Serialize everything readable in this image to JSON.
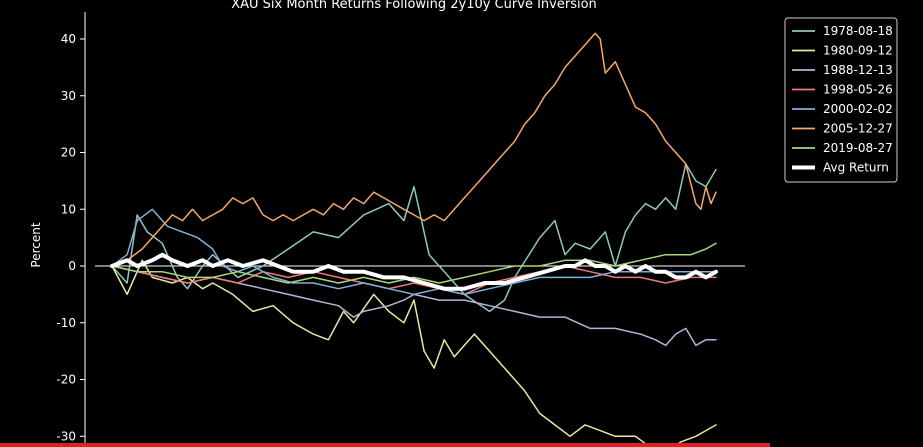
{
  "chart_data": {
    "type": "line",
    "title": "XAU Six Month Returns Following 2y10y Curve Inversion",
    "xlabel": "",
    "ylabel": "Percent",
    "ylim": [
      -31,
      43
    ],
    "yticks": [
      -30,
      -20,
      -10,
      0,
      10,
      20,
      30,
      40
    ],
    "xlim": [
      0,
      122
    ],
    "grid": false,
    "zero_line": true,
    "legend_position": "top-right",
    "series": [
      {
        "name": "1978-08-18",
        "color": "#8ec8c0",
        "points": [
          [
            0,
            0
          ],
          [
            3,
            -3
          ],
          [
            5,
            9
          ],
          [
            7,
            6
          ],
          [
            10,
            4
          ],
          [
            13,
            -2
          ],
          [
            15,
            -4
          ],
          [
            18,
            0
          ],
          [
            20,
            2
          ],
          [
            25,
            -2
          ],
          [
            30,
            0
          ],
          [
            35,
            3
          ],
          [
            40,
            6
          ],
          [
            45,
            5
          ],
          [
            50,
            9
          ],
          [
            55,
            11
          ],
          [
            58,
            8
          ],
          [
            60,
            14
          ],
          [
            63,
            2
          ],
          [
            65,
            0
          ],
          [
            68,
            -3
          ],
          [
            70,
            -5
          ],
          [
            75,
            -8
          ],
          [
            78,
            -6
          ],
          [
            80,
            -2
          ],
          [
            85,
            5
          ],
          [
            88,
            8
          ],
          [
            90,
            2
          ],
          [
            92,
            4
          ],
          [
            95,
            3
          ],
          [
            98,
            6
          ],
          [
            100,
            0
          ],
          [
            102,
            6
          ],
          [
            104,
            9
          ],
          [
            106,
            11
          ],
          [
            108,
            10
          ],
          [
            110,
            12
          ],
          [
            112,
            10
          ],
          [
            114,
            18
          ],
          [
            116,
            15
          ],
          [
            118,
            14
          ],
          [
            120,
            17
          ]
        ]
      },
      {
        "name": "1980-09-12",
        "color": "#e8e8a0",
        "points": [
          [
            0,
            0
          ],
          [
            3,
            -5
          ],
          [
            6,
            1
          ],
          [
            8,
            -2
          ],
          [
            12,
            -3
          ],
          [
            15,
            -2
          ],
          [
            18,
            -4
          ],
          [
            20,
            -3
          ],
          [
            24,
            -5
          ],
          [
            28,
            -8
          ],
          [
            32,
            -7
          ],
          [
            36,
            -10
          ],
          [
            40,
            -12
          ],
          [
            43,
            -13
          ],
          [
            46,
            -8
          ],
          [
            48,
            -10
          ],
          [
            52,
            -5
          ],
          [
            55,
            -8
          ],
          [
            58,
            -10
          ],
          [
            60,
            -6
          ],
          [
            62,
            -15
          ],
          [
            64,
            -18
          ],
          [
            66,
            -13
          ],
          [
            68,
            -16
          ],
          [
            70,
            -14
          ],
          [
            72,
            -12
          ],
          [
            75,
            -15
          ],
          [
            78,
            -18
          ],
          [
            80,
            -20
          ],
          [
            82,
            -22
          ],
          [
            85,
            -26
          ],
          [
            88,
            -28
          ],
          [
            91,
            -30
          ],
          [
            94,
            -28
          ],
          [
            97,
            -29
          ],
          [
            100,
            -30
          ],
          [
            104,
            -30
          ],
          [
            107,
            -32
          ],
          [
            110,
            -33
          ],
          [
            113,
            -31
          ],
          [
            116,
            -30
          ],
          [
            118,
            -29
          ],
          [
            120,
            -28
          ]
        ]
      },
      {
        "name": "1988-12-13",
        "color": "#b8b4d8",
        "points": [
          [
            0,
            0
          ],
          [
            5,
            -1
          ],
          [
            10,
            -2
          ],
          [
            15,
            -3
          ],
          [
            20,
            -2
          ],
          [
            25,
            -3
          ],
          [
            30,
            -4
          ],
          [
            35,
            -5
          ],
          [
            40,
            -6
          ],
          [
            45,
            -7
          ],
          [
            48,
            -9
          ],
          [
            50,
            -8
          ],
          [
            55,
            -7
          ],
          [
            58,
            -6
          ],
          [
            60,
            -5
          ],
          [
            65,
            -6
          ],
          [
            70,
            -6
          ],
          [
            75,
            -7
          ],
          [
            80,
            -8
          ],
          [
            85,
            -9
          ],
          [
            90,
            -9
          ],
          [
            95,
            -11
          ],
          [
            100,
            -11
          ],
          [
            105,
            -12
          ],
          [
            108,
            -13
          ],
          [
            110,
            -14
          ],
          [
            112,
            -12
          ],
          [
            114,
            -11
          ],
          [
            116,
            -14
          ],
          [
            118,
            -13
          ],
          [
            120,
            -13
          ]
        ]
      },
      {
        "name": "1998-05-26",
        "color": "#f07878",
        "points": [
          [
            0,
            0
          ],
          [
            5,
            -1
          ],
          [
            10,
            -2
          ],
          [
            15,
            -3
          ],
          [
            20,
            -2
          ],
          [
            25,
            -3
          ],
          [
            30,
            -1
          ],
          [
            35,
            -2
          ],
          [
            40,
            -1
          ],
          [
            45,
            -2
          ],
          [
            50,
            -3
          ],
          [
            55,
            -4
          ],
          [
            60,
            -3
          ],
          [
            65,
            -4
          ],
          [
            70,
            -5
          ],
          [
            75,
            -3
          ],
          [
            80,
            -2
          ],
          [
            85,
            -1
          ],
          [
            90,
            0
          ],
          [
            95,
            -1
          ],
          [
            100,
            -2
          ],
          [
            105,
            -2
          ],
          [
            110,
            -3
          ],
          [
            115,
            -2
          ],
          [
            120,
            -2
          ]
        ]
      },
      {
        "name": "2000-02-02",
        "color": "#80b0d8",
        "points": [
          [
            0,
            0
          ],
          [
            3,
            2
          ],
          [
            5,
            8
          ],
          [
            8,
            10
          ],
          [
            11,
            7
          ],
          [
            14,
            6
          ],
          [
            17,
            5
          ],
          [
            20,
            3
          ],
          [
            22,
            0
          ],
          [
            25,
            -1
          ],
          [
            28,
            0
          ],
          [
            32,
            -2
          ],
          [
            36,
            -3
          ],
          [
            40,
            -3
          ],
          [
            45,
            -4
          ],
          [
            50,
            -3
          ],
          [
            55,
            -4
          ],
          [
            60,
            -5
          ],
          [
            65,
            -4
          ],
          [
            70,
            -5
          ],
          [
            75,
            -4
          ],
          [
            80,
            -3
          ],
          [
            85,
            -2
          ],
          [
            90,
            -2
          ],
          [
            95,
            -2
          ],
          [
            100,
            -1
          ],
          [
            105,
            -1
          ],
          [
            110,
            -1
          ],
          [
            115,
            -1
          ],
          [
            120,
            -1
          ]
        ]
      },
      {
        "name": "2005-12-27",
        "color": "#f4a868",
        "points": [
          [
            0,
            0
          ],
          [
            3,
            1
          ],
          [
            6,
            3
          ],
          [
            8,
            5
          ],
          [
            10,
            7
          ],
          [
            12,
            9
          ],
          [
            14,
            8
          ],
          [
            16,
            10
          ],
          [
            18,
            8
          ],
          [
            20,
            9
          ],
          [
            22,
            10
          ],
          [
            24,
            12
          ],
          [
            26,
            11
          ],
          [
            28,
            12
          ],
          [
            30,
            9
          ],
          [
            32,
            8
          ],
          [
            34,
            9
          ],
          [
            36,
            8
          ],
          [
            38,
            9
          ],
          [
            40,
            10
          ],
          [
            42,
            9
          ],
          [
            44,
            11
          ],
          [
            46,
            10
          ],
          [
            48,
            12
          ],
          [
            50,
            11
          ],
          [
            52,
            13
          ],
          [
            54,
            12
          ],
          [
            56,
            11
          ],
          [
            58,
            10
          ],
          [
            60,
            9
          ],
          [
            62,
            8
          ],
          [
            64,
            9
          ],
          [
            66,
            8
          ],
          [
            68,
            10
          ],
          [
            70,
            12
          ],
          [
            72,
            14
          ],
          [
            74,
            16
          ],
          [
            76,
            18
          ],
          [
            78,
            20
          ],
          [
            80,
            22
          ],
          [
            82,
            25
          ],
          [
            84,
            27
          ],
          [
            86,
            30
          ],
          [
            88,
            32
          ],
          [
            90,
            35
          ],
          [
            92,
            37
          ],
          [
            94,
            39
          ],
          [
            96,
            41
          ],
          [
            97,
            40
          ],
          [
            98,
            34
          ],
          [
            100,
            36
          ],
          [
            102,
            32
          ],
          [
            104,
            28
          ],
          [
            106,
            27
          ],
          [
            108,
            25
          ],
          [
            110,
            22
          ],
          [
            112,
            20
          ],
          [
            114,
            18
          ],
          [
            116,
            11
          ],
          [
            117,
            10
          ],
          [
            118,
            14
          ],
          [
            119,
            11
          ],
          [
            120,
            13
          ]
        ]
      },
      {
        "name": "2019-08-27",
        "color": "#a8d878",
        "points": [
          [
            0,
            0
          ],
          [
            5,
            -1
          ],
          [
            10,
            -1
          ],
          [
            15,
            -2
          ],
          [
            20,
            -2
          ],
          [
            25,
            -1
          ],
          [
            30,
            -2
          ],
          [
            35,
            -3
          ],
          [
            40,
            -2
          ],
          [
            45,
            -3
          ],
          [
            50,
            -2
          ],
          [
            55,
            -3
          ],
          [
            60,
            -2
          ],
          [
            65,
            -3
          ],
          [
            70,
            -2
          ],
          [
            75,
            -1
          ],
          [
            80,
            0
          ],
          [
            85,
            0
          ],
          [
            90,
            1
          ],
          [
            95,
            1
          ],
          [
            100,
            0
          ],
          [
            105,
            1
          ],
          [
            110,
            2
          ],
          [
            115,
            2
          ],
          [
            118,
            3
          ],
          [
            120,
            4
          ]
        ]
      },
      {
        "name": "Avg Return",
        "color": "#ffffff",
        "points": [
          [
            0,
            0
          ],
          [
            3,
            1
          ],
          [
            5,
            0
          ],
          [
            8,
            1
          ],
          [
            10,
            2
          ],
          [
            12,
            1
          ],
          [
            15,
            0
          ],
          [
            18,
            1
          ],
          [
            20,
            0
          ],
          [
            23,
            1
          ],
          [
            26,
            0
          ],
          [
            30,
            1
          ],
          [
            33,
            0
          ],
          [
            36,
            -1
          ],
          [
            40,
            -1
          ],
          [
            43,
            0
          ],
          [
            46,
            -1
          ],
          [
            50,
            -1
          ],
          [
            54,
            -2
          ],
          [
            58,
            -2
          ],
          [
            62,
            -3
          ],
          [
            66,
            -4
          ],
          [
            70,
            -4
          ],
          [
            74,
            -3
          ],
          [
            78,
            -3
          ],
          [
            82,
            -2
          ],
          [
            86,
            -1
          ],
          [
            90,
            0
          ],
          [
            92,
            0
          ],
          [
            94,
            1
          ],
          [
            96,
            0
          ],
          [
            98,
            0
          ],
          [
            100,
            -1
          ],
          [
            102,
            0
          ],
          [
            104,
            -1
          ],
          [
            106,
            0
          ],
          [
            108,
            -1
          ],
          [
            110,
            -1
          ],
          [
            112,
            -2
          ],
          [
            114,
            -2
          ],
          [
            116,
            -1
          ],
          [
            118,
            -2
          ],
          [
            120,
            -1
          ]
        ]
      }
    ]
  }
}
